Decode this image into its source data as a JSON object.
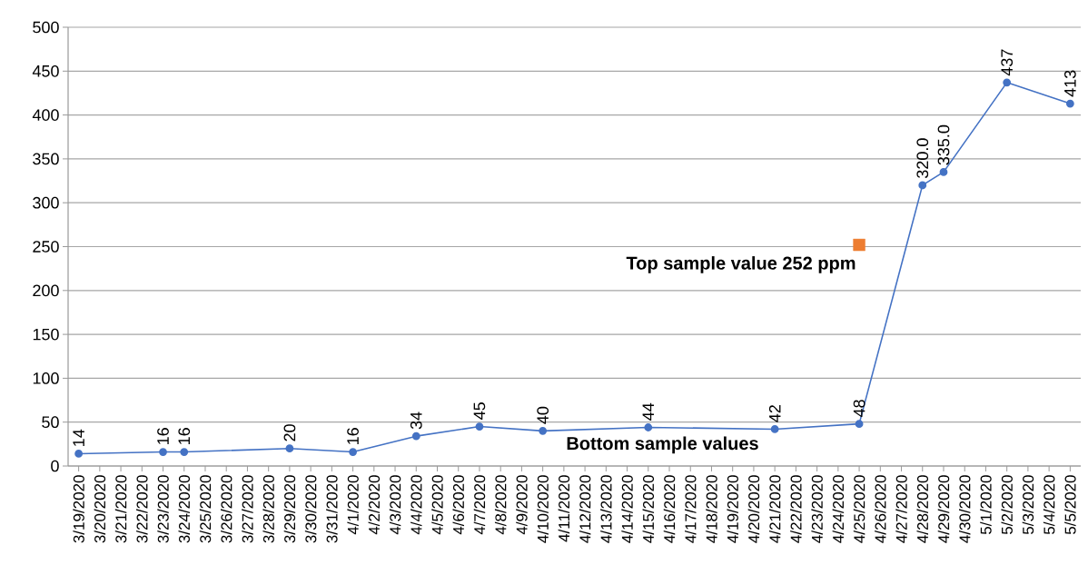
{
  "chart_data": {
    "type": "line",
    "xlim": [
      "2020-03-18T12:00",
      "2020-05-05T12:00"
    ],
    "xticks": [
      {
        "value": "2020-03-19",
        "label": "3/19/2020"
      },
      {
        "value": "2020-03-20",
        "label": "3/20/2020"
      },
      {
        "value": "2020-03-21",
        "label": "3/21/2020"
      },
      {
        "value": "2020-03-22",
        "label": "3/22/2020"
      },
      {
        "value": "2020-03-23",
        "label": "3/23/2020"
      },
      {
        "value": "2020-03-24",
        "label": "3/24/2020"
      },
      {
        "value": "2020-03-25",
        "label": "3/25/2020"
      },
      {
        "value": "2020-03-26",
        "label": "3/26/2020"
      },
      {
        "value": "2020-03-27",
        "label": "3/27/2020"
      },
      {
        "value": "2020-03-28",
        "label": "3/28/2020"
      },
      {
        "value": "2020-03-29",
        "label": "3/29/2020"
      },
      {
        "value": "2020-03-30",
        "label": "3/30/2020"
      },
      {
        "value": "2020-03-31",
        "label": "3/31/2020"
      },
      {
        "value": "2020-04-01",
        "label": "4/1/2020"
      },
      {
        "value": "2020-04-02",
        "label": "4/2/2020"
      },
      {
        "value": "2020-04-03",
        "label": "4/3/2020"
      },
      {
        "value": "2020-04-04",
        "label": "4/4/2020"
      },
      {
        "value": "2020-04-05",
        "label": "4/5/2020"
      },
      {
        "value": "2020-04-06",
        "label": "4/6/2020"
      },
      {
        "value": "2020-04-07",
        "label": "4/7/2020"
      },
      {
        "value": "2020-04-08",
        "label": "4/8/2020"
      },
      {
        "value": "2020-04-09",
        "label": "4/9/2020"
      },
      {
        "value": "2020-04-10",
        "label": "4/10/2020"
      },
      {
        "value": "2020-04-11",
        "label": "4/11/2020"
      },
      {
        "value": "2020-04-12",
        "label": "4/12/2020"
      },
      {
        "value": "2020-04-13",
        "label": "4/13/2020"
      },
      {
        "value": "2020-04-14",
        "label": "4/14/2020"
      },
      {
        "value": "2020-04-15",
        "label": "4/15/2020"
      },
      {
        "value": "2020-04-16",
        "label": "4/16/2020"
      },
      {
        "value": "2020-04-17",
        "label": "4/17/2020"
      },
      {
        "value": "2020-04-18",
        "label": "4/18/2020"
      },
      {
        "value": "2020-04-19",
        "label": "4/19/2020"
      },
      {
        "value": "2020-04-20",
        "label": "4/20/2020"
      },
      {
        "value": "2020-04-21",
        "label": "4/21/2020"
      },
      {
        "value": "2020-04-22",
        "label": "4/22/2020"
      },
      {
        "value": "2020-04-23",
        "label": "4/23/2020"
      },
      {
        "value": "2020-04-24",
        "label": "4/24/2020"
      },
      {
        "value": "2020-04-25",
        "label": "4/25/2020"
      },
      {
        "value": "2020-04-26",
        "label": "4/26/2020"
      },
      {
        "value": "2020-04-27",
        "label": "4/27/2020"
      },
      {
        "value": "2020-04-28",
        "label": "4/28/2020"
      },
      {
        "value": "2020-04-29",
        "label": "4/29/2020"
      },
      {
        "value": "2020-04-30",
        "label": "4/30/2020"
      },
      {
        "value": "2020-05-01",
        "label": "5/1/2020"
      },
      {
        "value": "2020-05-02",
        "label": "5/2/2020"
      },
      {
        "value": "2020-05-03",
        "label": "5/3/2020"
      },
      {
        "value": "2020-05-04",
        "label": "5/4/2020"
      },
      {
        "value": "2020-05-05",
        "label": "5/5/2020"
      }
    ],
    "ylim": [
      0,
      500
    ],
    "yticks": [
      0,
      50,
      100,
      150,
      200,
      250,
      300,
      350,
      400,
      450,
      500
    ],
    "grid": "y",
    "series": [
      {
        "color": "#4472c4",
        "marker": "circle",
        "x": [
          "2020-03-19",
          "2020-03-23",
          "2020-03-24",
          "2020-03-29",
          "2020-04-01",
          "2020-04-04",
          "2020-04-07",
          "2020-04-10",
          "2020-04-15",
          "2020-04-21",
          "2020-04-25",
          "2020-04-28",
          "2020-04-29",
          "2020-05-02",
          "2020-05-05"
        ],
        "values": [
          14,
          16,
          16,
          20,
          16,
          34,
          45,
          40,
          44,
          42,
          48,
          320,
          335,
          437,
          413
        ],
        "value_labels": [
          "14",
          "16",
          "16",
          "20",
          "16",
          "34",
          "45",
          "40",
          "44",
          "42",
          "48",
          "320.0",
          "335.0",
          "437",
          "413"
        ]
      },
      {
        "type": "scatter",
        "color": "#ed7d31",
        "marker": "square",
        "x": [
          "2020-04-25"
        ],
        "values": [
          252
        ]
      }
    ],
    "annotations": [
      {
        "text": "Top sample value 252 ppm",
        "x": "2020-04-25",
        "y": 252
      },
      "Bottom sample values"
    ]
  }
}
